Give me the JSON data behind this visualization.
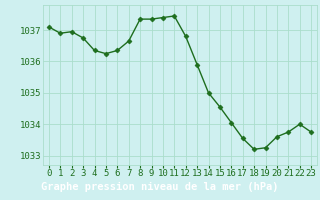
{
  "x": [
    0,
    1,
    2,
    3,
    4,
    5,
    6,
    7,
    8,
    9,
    10,
    11,
    12,
    13,
    14,
    15,
    16,
    17,
    18,
    19,
    20,
    21,
    22,
    23
  ],
  "y": [
    1037.1,
    1036.9,
    1036.95,
    1036.75,
    1036.35,
    1036.25,
    1036.35,
    1036.65,
    1037.35,
    1037.35,
    1037.4,
    1037.45,
    1036.8,
    1035.9,
    1035.0,
    1034.55,
    1034.05,
    1033.55,
    1033.2,
    1033.25,
    1033.6,
    1033.75,
    1034.0,
    1033.75
  ],
  "line_color": "#1e6e1e",
  "marker": "D",
  "marker_size": 2.5,
  "marker_edge_width": 0.5,
  "bg_color": "#cff0f0",
  "grid_color": "#aaddcc",
  "tick_color": "#1e6e1e",
  "ylim": [
    1032.7,
    1037.8
  ],
  "yticks": [
    1033,
    1034,
    1035,
    1036,
    1037
  ],
  "xticks": [
    0,
    1,
    2,
    3,
    4,
    5,
    6,
    7,
    8,
    9,
    10,
    11,
    12,
    13,
    14,
    15,
    16,
    17,
    18,
    19,
    20,
    21,
    22,
    23
  ],
  "xlabel": "Graphe pression niveau de la mer (hPa)",
  "xlabel_fontsize": 7.5,
  "tick_fontsize": 6.5,
  "label_bg_color": "#226622",
  "linewidth": 1.0
}
